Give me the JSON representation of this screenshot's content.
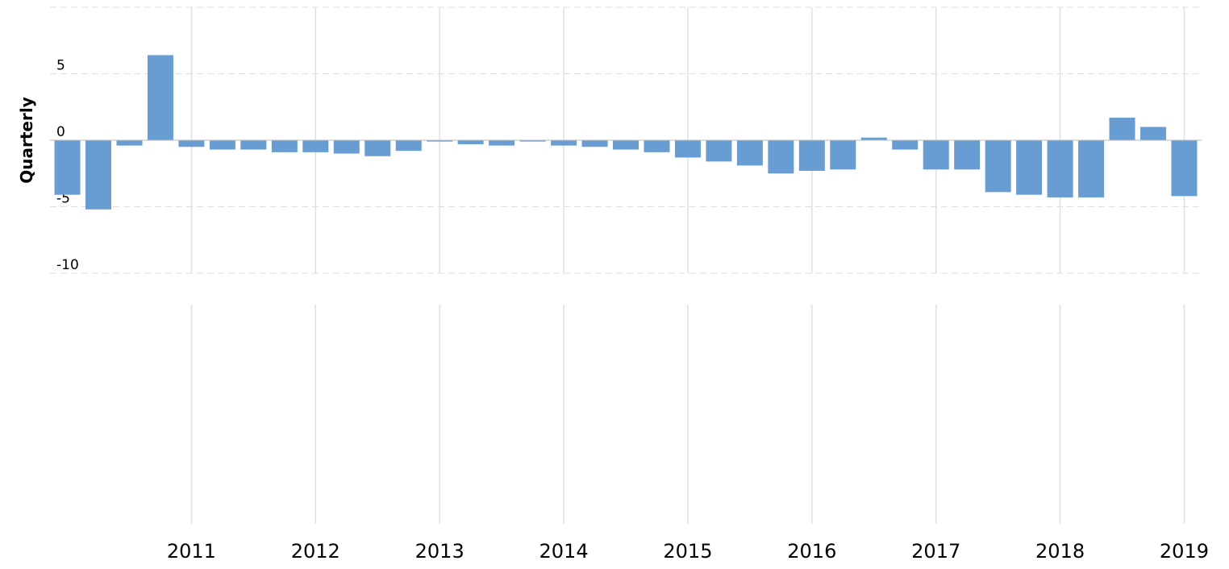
{
  "chart_data": {
    "type": "bar",
    "y_label": "Quarterly",
    "x": [
      2010,
      2010.25,
      2010.5,
      2010.75,
      2011,
      2011.25,
      2011.5,
      2011.75,
      2012,
      2012.25,
      2012.5,
      2012.75,
      2013,
      2013.25,
      2013.5,
      2013.75,
      2014,
      2014.25,
      2014.5,
      2014.75,
      2015,
      2015.25,
      2015.5,
      2015.75,
      2016,
      2016.25,
      2016.5,
      2016.75,
      2017,
      2017.25,
      2017.5,
      2017.75,
      2018,
      2018.25,
      2018.5,
      2018.75,
      2019
    ],
    "values": [
      -4.1,
      -5.2,
      -0.4,
      6.4,
      -0.5,
      -0.7,
      -0.7,
      -0.9,
      -0.9,
      -1.0,
      -1.2,
      -0.8,
      -0.1,
      -0.3,
      -0.4,
      -0.1,
      -0.4,
      -0.5,
      -0.7,
      -0.9,
      -1.3,
      -1.6,
      -1.9,
      -2.5,
      -2.3,
      -2.2,
      0.2,
      -0.7,
      -2.2,
      -2.2,
      -3.9,
      -4.1,
      -4.3,
      -4.3,
      1.7,
      1.0,
      -4.2
    ],
    "color": "#689dd3",
    "xlim": [
      2009.86,
      2019.14
    ],
    "xticks": [
      2011,
      2012,
      2013,
      2014,
      2015,
      2016,
      2017,
      2018,
      2019
    ],
    "ylim": [
      -10,
      10
    ],
    "yticks": [
      -10,
      -5,
      0,
      5
    ],
    "grid": true
  }
}
